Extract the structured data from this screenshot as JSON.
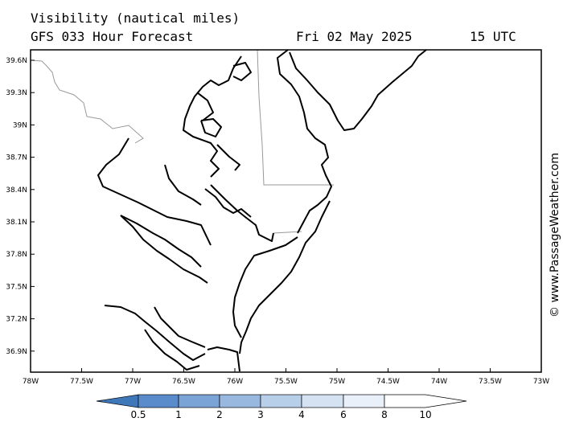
{
  "header": {
    "title": "Visibility (nautical miles)",
    "subtitle": "GFS 033 Hour Forecast",
    "date": "Fri 02 May 2025",
    "time": "15 UTC"
  },
  "map": {
    "lat_labels": [
      "39.6N",
      "39.3N",
      "39N",
      "38.7N",
      "38.4N",
      "38.1N",
      "37.8N",
      "37.5N",
      "37.2N",
      "36.9N"
    ],
    "lon_labels": [
      "78W",
      "77.5W",
      "77W",
      "76.5W",
      "76W",
      "75.5W",
      "75W",
      "74.5W",
      "74W",
      "73.5W",
      "73W"
    ],
    "coastline_color": "#000000",
    "border_color": "#999999"
  },
  "legend": {
    "labels": [
      "0.5",
      "1",
      "2",
      "3",
      "4",
      "6",
      "8",
      "10"
    ],
    "colors": [
      "#3f78b8",
      "#5a8ccb",
      "#7aa3d6",
      "#98b8df",
      "#b8cfe9",
      "#d4e2f2",
      "#eaf0f9",
      "#ffffff"
    ]
  },
  "watermark": "© www.PassageWeather.com"
}
